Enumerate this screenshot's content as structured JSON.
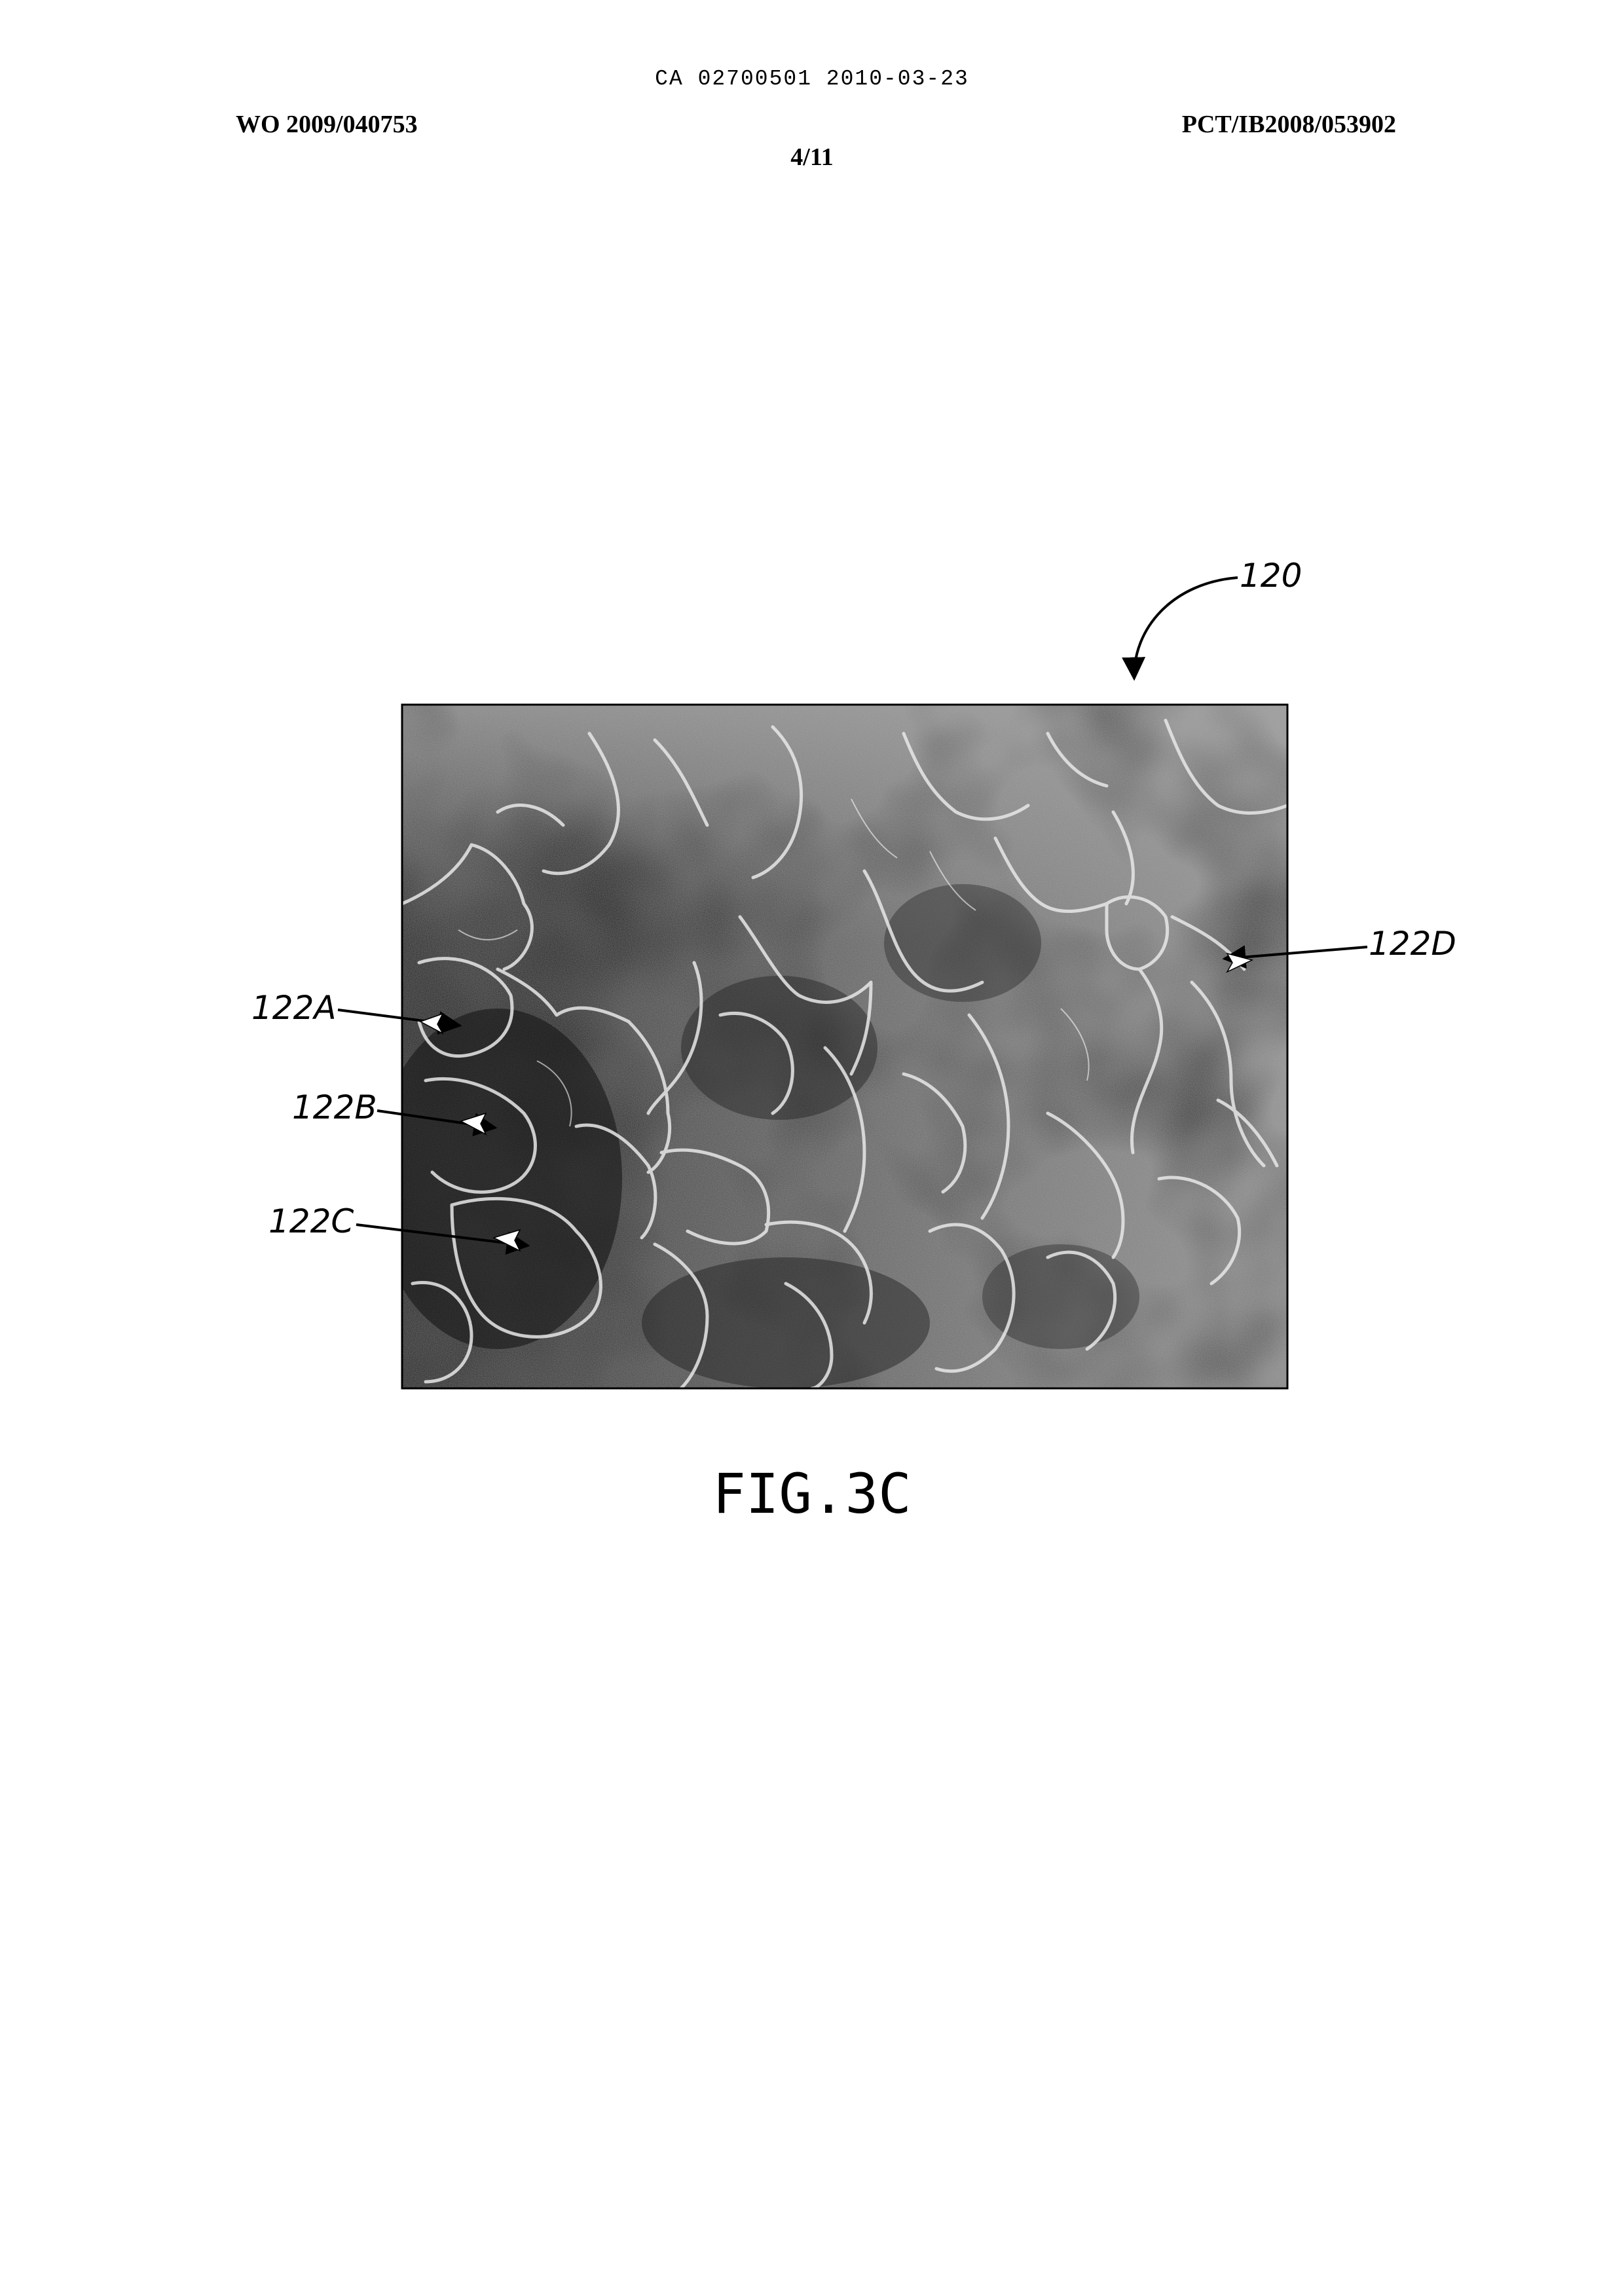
{
  "header": {
    "ca_reference": "CA 02700501 2010-03-23",
    "wo_number": "WO 2009/040753",
    "pct_number": "PCT/IB2008/053902",
    "sheet": "4/11"
  },
  "figure": {
    "main_label": "120",
    "labels": {
      "a": "122A",
      "b": "122B",
      "c": "122C",
      "d": "122D"
    },
    "caption": "FIG.3C"
  }
}
